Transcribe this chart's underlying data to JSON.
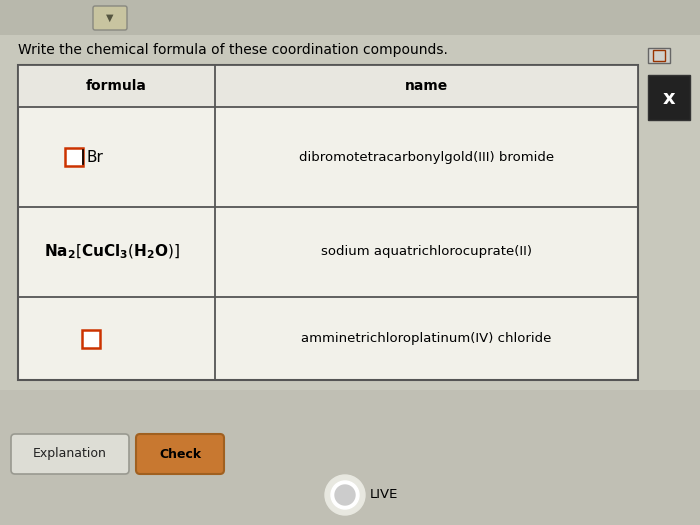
{
  "title": "Write the chemical formula of these coordination compounds.",
  "col1_header": "formula",
  "col2_header": "name",
  "bg_color": "#c8c8bc",
  "table_bg": "#f0efe8",
  "header_bg": "#eaeae0",
  "row1_name": "dibromotetracarbonylgold(III) bromide",
  "row2_name": "sodium aquatrichlorocuprate(II)",
  "row3_name": "amminetrichloroplatinum(IV) chloride",
  "button1": "Explanation",
  "button2": "Check",
  "title_fontsize": 10,
  "cell_fontsize": 10,
  "header_fontsize": 10,
  "live_text": "LIVE",
  "input_box_color": "#cc3300",
  "table_line_color": "#555555",
  "top_bar_color": "#d0cfc4",
  "bottom_bar_color": "#c0bfb4"
}
